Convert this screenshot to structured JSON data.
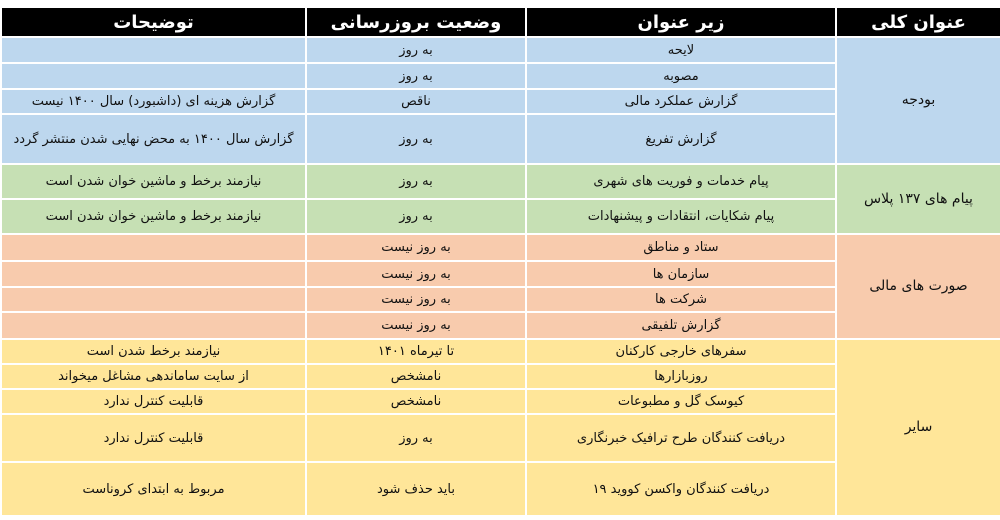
{
  "headers": [
    "عنوان کلی",
    "زیر عنوان",
    "وضعیت بروزرسانی",
    "توضیحات"
  ],
  "colors": {
    "header": "#000000",
    "budget": "#bdd7ee",
    "plus137": "#c6e0b4",
    "financial": "#f8cbad",
    "other": "#ffe699"
  },
  "groups": [
    {
      "title": "بودجه",
      "rows": [
        {
          "subtitle": "لایحه",
          "status": "به روز",
          "note": ""
        },
        {
          "subtitle": "مصوبه",
          "status": "به روز",
          "note": ""
        },
        {
          "subtitle": "گزارش عملکرد مالی",
          "status": "ناقص",
          "note": "گزارش هزینه ای (داشبورد) سال ۱۴۰۰ نیست"
        },
        {
          "subtitle": "گزارش تفریغ",
          "status": "به روز",
          "note": "گزارش سال ۱۴۰۰ به محض نهایی شدن منتشر گردد"
        }
      ]
    },
    {
      "title": "پیام های ۱۳۷ پلاس",
      "rows": [
        {
          "subtitle": "پیام خدمات و فوریت های شهری",
          "status": "به روز",
          "note": "نیازمند برخط و ماشین خوان شدن است"
        },
        {
          "subtitle": "پیام شکایات، انتقادات و پیشنهادات",
          "status": "به روز",
          "note": "نیازمند برخط و ماشین خوان شدن است"
        }
      ]
    },
    {
      "title": "صورت های مالی",
      "rows": [
        {
          "subtitle": "ستاد و مناطق",
          "status": "به روز نیست",
          "note": ""
        },
        {
          "subtitle": "سازمان ها",
          "status": "به روز نیست",
          "note": ""
        },
        {
          "subtitle": "شرکت ها",
          "status": "به روز نیست",
          "note": ""
        },
        {
          "subtitle": "گزارش تلفیقی",
          "status": "به روز نیست",
          "note": ""
        }
      ]
    },
    {
      "title": "سایر",
      "rows": [
        {
          "subtitle": "سفرهای خارجی کارکنان",
          "status": "تا تیرماه ۱۴۰۱",
          "note": "نیازمند برخط شدن است"
        },
        {
          "subtitle": "روزبازارها",
          "status": "نامشخص",
          "note": "از سایت ساماندهی مشاغل میخواند"
        },
        {
          "subtitle": "کیوسک گل و مطبوعات",
          "status": "نامشخص",
          "note": "قابلیت کنترل ندارد"
        },
        {
          "subtitle": "دریافت کنندگان طرح ترافیک خبرنگاری",
          "status": "به روز",
          "note": "قابلیت کنترل ندارد"
        },
        {
          "subtitle": "دریافت کنندگان واکسن کووید ۱۹",
          "status": "باید حذف شود",
          "note": "مربوط به ابتدای کروناست"
        }
      ]
    }
  ]
}
